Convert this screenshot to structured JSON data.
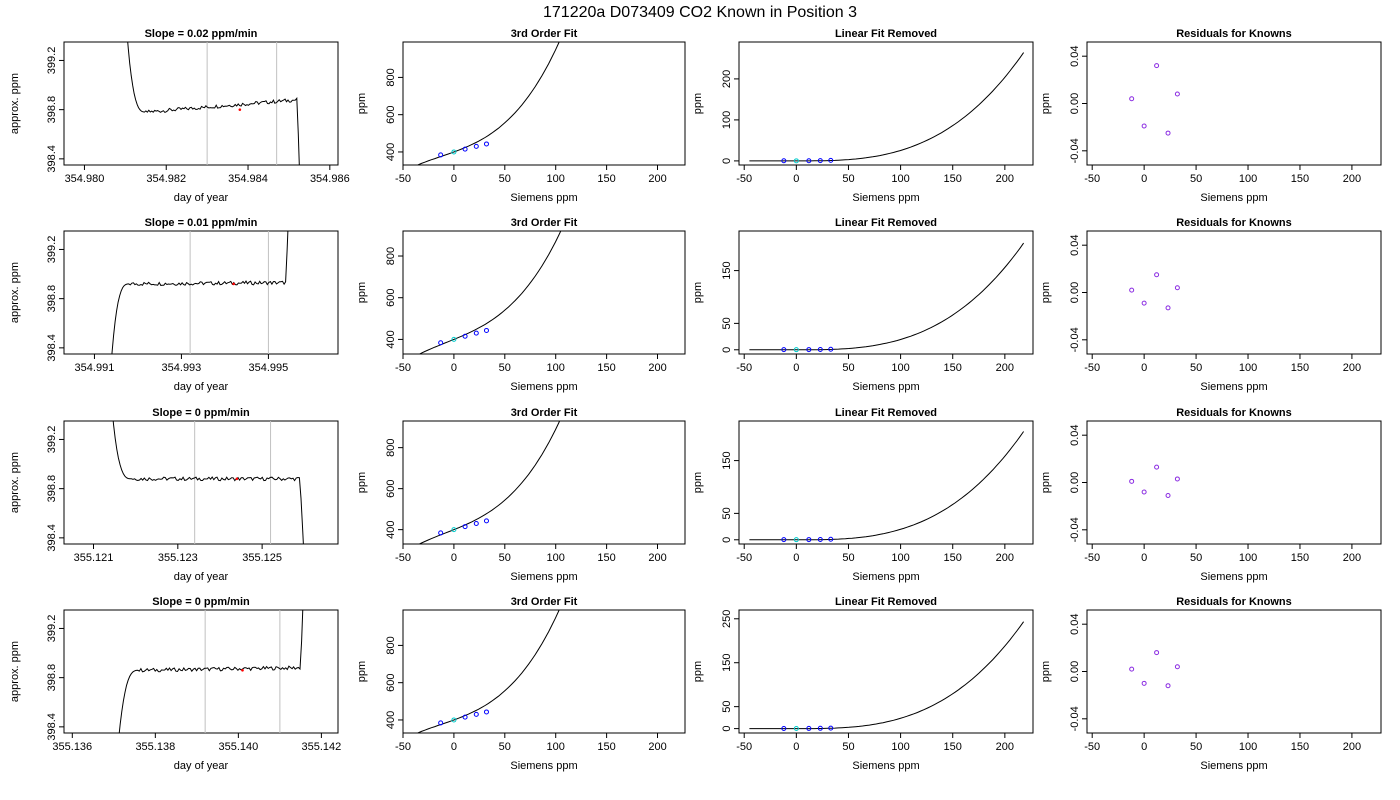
{
  "figure": {
    "title": "171220a      D073409   CO2 Known in Position  3"
  },
  "chart_data": [
    {
      "type": "line",
      "row": 0,
      "col": 0,
      "title": "Slope =  0.02  ppm/min",
      "xlabel": "day of year",
      "ylabel": "approx. ppm",
      "xlim": [
        354.9795,
        354.9862
      ],
      "ylim": [
        398.35,
        399.35
      ],
      "xticks": [
        354.98,
        354.982,
        354.984,
        354.986
      ],
      "xtick_labels": [
        "354.980",
        "354.982",
        "354.984",
        "354.986"
      ],
      "yticks": [
        398.4,
        398.8,
        399.2
      ],
      "ytick_labels": [
        "398.4",
        "398.8",
        "399.2"
      ],
      "vlines": [
        354.983,
        354.9847
      ],
      "mid_y": 398.78,
      "start_y": 399.6,
      "end_y": 397.9,
      "tail_y": 398.88,
      "red_dot": [
        354.9838,
        398.8
      ],
      "x_start": 354.981,
      "x_step": 354.9815,
      "x_end_plateau": 354.9852,
      "x_end": 354.9853
    },
    {
      "type": "line",
      "row": 0,
      "col": 1,
      "title": "3rd Order Fit",
      "xlabel": "Siemens ppm",
      "ylabel": "ppm",
      "xlim": [
        -50,
        227
      ],
      "ylim": [
        330,
        990
      ],
      "xticks": [
        -50,
        0,
        50,
        100,
        150,
        200
      ],
      "xtick_labels": [
        "-50",
        "0",
        "50",
        "100",
        "150",
        "200"
      ],
      "yticks": [
        400,
        600,
        800
      ],
      "ytick_labels": [
        "400",
        "600",
        "800"
      ],
      "curve": {
        "a": 400,
        "b": 2.0,
        "c": 0.01,
        "d": 0.00025,
        "x0": -45,
        "x1": 218
      },
      "points": [
        [
          -13,
          384
        ],
        [
          0,
          400
        ],
        [
          11,
          415
        ],
        [
          22,
          430
        ],
        [
          32,
          443
        ]
      ]
    },
    {
      "type": "line",
      "row": 0,
      "col": 2,
      "title": "Linear Fit Removed",
      "xlabel": "Siemens ppm",
      "ylabel": "ppm",
      "xlim": [
        -55,
        227
      ],
      "ylim": [
        -10,
        290
      ],
      "xticks": [
        -50,
        0,
        50,
        100,
        150,
        200
      ],
      "xtick_labels": [
        "-50",
        "0",
        "50",
        "100",
        "150",
        "200"
      ],
      "yticks": [
        0,
        100,
        200
      ],
      "ytick_labels": [
        "0",
        "100",
        "200"
      ],
      "curve": {
        "k": 2.55e-05,
        "x0": -45,
        "x1": 218
      },
      "points": [
        [
          -12,
          0.3
        ],
        [
          0,
          0.2
        ],
        [
          12,
          0.4
        ],
        [
          23,
          0.7
        ],
        [
          33,
          1.2
        ]
      ]
    },
    {
      "type": "scatter",
      "row": 0,
      "col": 3,
      "title": "Residuals for Knowns",
      "xlabel": "Siemens ppm",
      "ylabel": "ppm",
      "xlim": [
        -55,
        228
      ],
      "ylim": [
        -0.052,
        0.052
      ],
      "xticks": [
        -50,
        0,
        50,
        100,
        150,
        200
      ],
      "xtick_labels": [
        "-50",
        "0",
        "50",
        "100",
        "150",
        "200"
      ],
      "yticks": [
        -0.04,
        0.0,
        0.04
      ],
      "ytick_labels": [
        "-0.04",
        "0.00",
        "0.04"
      ],
      "points": [
        [
          -12,
          0.004
        ],
        [
          0,
          -0.019
        ],
        [
          12,
          0.032
        ],
        [
          23,
          -0.025
        ],
        [
          32,
          0.008
        ]
      ]
    },
    {
      "type": "line",
      "row": 1,
      "col": 0,
      "title": "Slope =  0.01  ppm/min",
      "xlabel": "day of year",
      "ylabel": "approx. ppm",
      "xlim": [
        354.9903,
        354.9966
      ],
      "ylim": [
        398.35,
        399.35
      ],
      "xticks": [
        354.991,
        354.993,
        354.995
      ],
      "xtick_labels": [
        "354.991",
        "354.993",
        "354.995"
      ],
      "yticks": [
        398.4,
        398.8,
        399.2
      ],
      "ytick_labels": [
        "398.4",
        "398.8",
        "399.2"
      ],
      "vlines": [
        354.9932,
        354.995
      ],
      "mid_y": 398.92,
      "start_y": 397.8,
      "end_y": 399.8,
      "tail_y": 398.93,
      "red_dot": [
        354.9942,
        398.92
      ],
      "x_start": 354.9913,
      "x_step": 354.9918,
      "x_end_plateau": 354.9954,
      "x_end": 354.9955
    },
    {
      "type": "line",
      "row": 1,
      "col": 1,
      "title": "3rd Order Fit",
      "xlabel": "Siemens ppm",
      "ylabel": "ppm",
      "xlim": [
        -50,
        227
      ],
      "ylim": [
        330,
        920
      ],
      "xticks": [
        -50,
        0,
        50,
        100,
        150,
        200
      ],
      "xtick_labels": [
        "-50",
        "0",
        "50",
        "100",
        "150",
        "200"
      ],
      "yticks": [
        400,
        600,
        800
      ],
      "ytick_labels": [
        "400",
        "600",
        "800"
      ],
      "curve": {
        "a": 400,
        "b": 2.0,
        "c": 0.005,
        "d": 0.00022,
        "x0": -45,
        "x1": 218
      },
      "points": [
        [
          -13,
          384
        ],
        [
          0,
          400
        ],
        [
          11,
          415
        ],
        [
          22,
          430
        ],
        [
          32,
          443
        ]
      ]
    },
    {
      "type": "line",
      "row": 1,
      "col": 2,
      "title": "Linear Fit Removed",
      "xlabel": "Siemens ppm",
      "ylabel": "ppm",
      "xlim": [
        -55,
        227
      ],
      "ylim": [
        -8,
        225
      ],
      "xticks": [
        -50,
        0,
        50,
        100,
        150,
        200
      ],
      "xtick_labels": [
        "-50",
        "0",
        "50",
        "100",
        "150",
        "200"
      ],
      "yticks": [
        0,
        50,
        150
      ],
      "ytick_labels": [
        "0",
        "50",
        "150"
      ],
      "curve": {
        "k": 1.95e-05,
        "x0": -45,
        "x1": 218
      },
      "points": [
        [
          -12,
          0.3
        ],
        [
          0,
          0.2
        ],
        [
          12,
          0.4
        ],
        [
          23,
          0.6
        ],
        [
          33,
          1.0
        ]
      ]
    },
    {
      "type": "scatter",
      "row": 1,
      "col": 3,
      "title": "Residuals for Knowns",
      "xlabel": "Siemens ppm",
      "ylabel": "ppm",
      "xlim": [
        -55,
        228
      ],
      "ylim": [
        -0.052,
        0.052
      ],
      "xticks": [
        -50,
        0,
        50,
        100,
        150,
        200
      ],
      "xtick_labels": [
        "-50",
        "0",
        "50",
        "100",
        "150",
        "200"
      ],
      "yticks": [
        -0.04,
        0.0,
        0.04
      ],
      "ytick_labels": [
        "-0.04",
        "0.00",
        "0.04"
      ],
      "points": [
        [
          -12,
          0.002
        ],
        [
          0,
          -0.009
        ],
        [
          12,
          0.015
        ],
        [
          23,
          -0.013
        ],
        [
          32,
          0.004
        ]
      ]
    },
    {
      "type": "line",
      "row": 2,
      "col": 0,
      "title": "Slope =  0  ppm/min",
      "xlabel": "day of year",
      "ylabel": "approx. ppm",
      "xlim": [
        355.1203,
        355.1268
      ],
      "ylim": [
        398.35,
        399.35
      ],
      "xticks": [
        355.121,
        355.123,
        355.125
      ],
      "xtick_labels": [
        "355.121",
        "355.123",
        "355.125"
      ],
      "yticks": [
        398.4,
        398.8,
        399.2
      ],
      "ytick_labels": [
        "398.4",
        "398.8",
        "399.2"
      ],
      "vlines": [
        355.1234,
        355.1252
      ],
      "mid_y": 398.88,
      "start_y": 399.6,
      "end_y": 398.2,
      "tail_y": 398.88,
      "red_dot": [
        355.1244,
        398.88
      ],
      "x_start": 355.1214,
      "x_step": 355.1219,
      "x_end_plateau": 355.1259,
      "x_end": 355.126
    },
    {
      "type": "line",
      "row": 2,
      "col": 1,
      "title": "3rd Order Fit",
      "xlabel": "Siemens ppm",
      "ylabel": "ppm",
      "xlim": [
        -50,
        227
      ],
      "ylim": [
        330,
        930
      ],
      "xticks": [
        -50,
        0,
        50,
        100,
        150,
        200
      ],
      "xtick_labels": [
        "-50",
        "0",
        "50",
        "100",
        "150",
        "200"
      ],
      "yticks": [
        400,
        600,
        800
      ],
      "ytick_labels": [
        "400",
        "600",
        "800"
      ],
      "curve": {
        "a": 400,
        "b": 2.0,
        "c": 0.006,
        "d": 0.00023,
        "x0": -45,
        "x1": 218
      },
      "points": [
        [
          -13,
          384
        ],
        [
          0,
          400
        ],
        [
          11,
          415
        ],
        [
          22,
          430
        ],
        [
          32,
          443
        ]
      ]
    },
    {
      "type": "line",
      "row": 2,
      "col": 2,
      "title": "Linear Fit Removed",
      "xlabel": "Siemens ppm",
      "ylabel": "ppm",
      "xlim": [
        -55,
        227
      ],
      "ylim": [
        -8,
        225
      ],
      "xticks": [
        -50,
        0,
        50,
        100,
        150,
        200
      ],
      "xtick_labels": [
        "-50",
        "0",
        "50",
        "100",
        "150",
        "200"
      ],
      "yticks": [
        0,
        50,
        150
      ],
      "ytick_labels": [
        "0",
        "50",
        "150"
      ],
      "curve": {
        "k": 1.98e-05,
        "x0": -45,
        "x1": 218
      },
      "points": [
        [
          -12,
          0.3
        ],
        [
          0,
          0.2
        ],
        [
          12,
          0.4
        ],
        [
          23,
          0.6
        ],
        [
          33,
          1.0
        ]
      ]
    },
    {
      "type": "scatter",
      "row": 2,
      "col": 3,
      "title": "Residuals for Knowns",
      "xlabel": "Siemens ppm",
      "ylabel": "ppm",
      "xlim": [
        -55,
        228
      ],
      "ylim": [
        -0.052,
        0.052
      ],
      "xticks": [
        -50,
        0,
        50,
        100,
        150,
        200
      ],
      "xtick_labels": [
        "-50",
        "0",
        "50",
        "100",
        "150",
        "200"
      ],
      "yticks": [
        -0.04,
        0.0,
        0.04
      ],
      "ytick_labels": [
        "-0.04",
        "0.00",
        "0.04"
      ],
      "points": [
        [
          -12,
          0.001
        ],
        [
          0,
          -0.008
        ],
        [
          12,
          0.013
        ],
        [
          23,
          -0.011
        ],
        [
          32,
          0.003
        ]
      ]
    },
    {
      "type": "line",
      "row": 3,
      "col": 0,
      "title": "Slope =  0  ppm/min",
      "xlabel": "day of year",
      "ylabel": "approx. ppm",
      "xlim": [
        355.1358,
        355.1424
      ],
      "ylim": [
        398.35,
        399.35
      ],
      "xticks": [
        355.136,
        355.138,
        355.14,
        355.142
      ],
      "xtick_labels": [
        "355.136",
        "355.138",
        "355.140",
        "355.142"
      ],
      "yticks": [
        398.4,
        398.8,
        399.2
      ],
      "ytick_labels": [
        "398.4",
        "398.8",
        "399.2"
      ],
      "vlines": [
        355.1392,
        355.141
      ],
      "mid_y": 398.86,
      "start_y": 397.8,
      "end_y": 399.8,
      "tail_y": 398.88,
      "red_dot": [
        355.1401,
        398.86
      ],
      "x_start": 355.137,
      "x_step": 355.1376,
      "x_end_plateau": 355.1415,
      "x_end": 355.1416
    },
    {
      "type": "line",
      "row": 3,
      "col": 1,
      "title": "3rd Order Fit",
      "xlabel": "Siemens ppm",
      "ylabel": "ppm",
      "xlim": [
        -50,
        227
      ],
      "ylim": [
        330,
        990
      ],
      "xticks": [
        -50,
        0,
        50,
        100,
        150,
        200
      ],
      "xtick_labels": [
        "-50",
        "0",
        "50",
        "100",
        "150",
        "200"
      ],
      "yticks": [
        400,
        600,
        800
      ],
      "ytick_labels": [
        "400",
        "600",
        "800"
      ],
      "curve": {
        "a": 400,
        "b": 2.0,
        "c": 0.01,
        "d": 0.00025,
        "x0": -45,
        "x1": 218
      },
      "points": [
        [
          -13,
          384
        ],
        [
          0,
          400
        ],
        [
          11,
          415
        ],
        [
          22,
          430
        ],
        [
          32,
          443
        ]
      ]
    },
    {
      "type": "line",
      "row": 3,
      "col": 2,
      "title": "Linear Fit Removed",
      "xlabel": "Siemens ppm",
      "ylabel": "ppm",
      "xlim": [
        -55,
        227
      ],
      "ylim": [
        -10,
        270
      ],
      "xticks": [
        -50,
        0,
        50,
        100,
        150,
        200
      ],
      "xtick_labels": [
        "-50",
        "0",
        "50",
        "100",
        "150",
        "200"
      ],
      "yticks": [
        0,
        50,
        150,
        250
      ],
      "ytick_labels": [
        "0",
        "50",
        "150",
        "250"
      ],
      "curve": {
        "k": 2.35e-05,
        "x0": -45,
        "x1": 218
      },
      "points": [
        [
          -12,
          0.3
        ],
        [
          0,
          0.2
        ],
        [
          12,
          0.4
        ],
        [
          23,
          0.7
        ],
        [
          33,
          1.1
        ]
      ]
    },
    {
      "type": "scatter",
      "row": 3,
      "col": 3,
      "title": "Residuals for Knowns",
      "xlabel": "Siemens ppm",
      "ylabel": "ppm",
      "xlim": [
        -55,
        228
      ],
      "ylim": [
        -0.052,
        0.052
      ],
      "xticks": [
        -50,
        0,
        50,
        100,
        150,
        200
      ],
      "xtick_labels": [
        "-50",
        "0",
        "50",
        "100",
        "150",
        "200"
      ],
      "yticks": [
        -0.04,
        0.0,
        0.04
      ],
      "ytick_labels": [
        "-0.04",
        "0.00",
        "0.04"
      ],
      "points": [
        [
          -12,
          0.002
        ],
        [
          0,
          -0.01
        ],
        [
          12,
          0.016
        ],
        [
          23,
          -0.012
        ],
        [
          32,
          0.004
        ]
      ]
    }
  ]
}
